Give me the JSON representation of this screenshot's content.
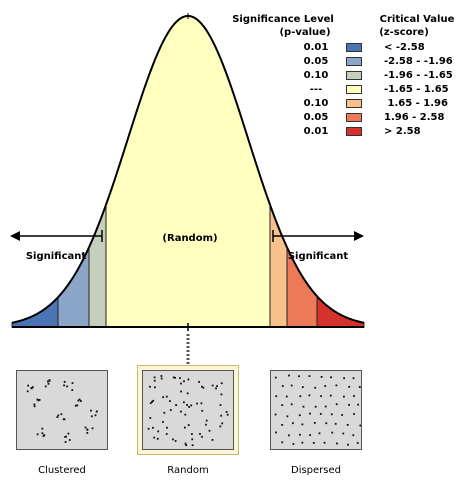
{
  "labels": {
    "significant_left": "Significant",
    "random_center": "(Random)",
    "significant_right": "Significant"
  },
  "legend": {
    "sig_header_line1": "Significance Level",
    "sig_header_line2": "(p-value)",
    "crit_header_line1": "Critical Value",
    "crit_header_line2": "(z-score)",
    "rows": [
      {
        "p": "0.01",
        "z": "< -2.58",
        "color": "#4a74b4"
      },
      {
        "p": "0.05",
        "z": "-2.58 - -1.96",
        "color": "#8aa5c8"
      },
      {
        "p": "0.10",
        "z": "-1.96 - -1.65",
        "color": "#c5cfbc"
      },
      {
        "p": "---",
        "z": "-1.65 - 1.65",
        "color": "#ffffc0"
      },
      {
        "p": "0.10",
        "z": " 1.65 - 1.96",
        "color": "#f9c28d"
      },
      {
        "p": "0.05",
        "z": "1.96 - 2.58",
        "color": "#ec7a58"
      },
      {
        "p": "0.01",
        "z": "> 2.58",
        "color": "#d4322b"
      }
    ]
  },
  "panels": {
    "clustered": "Clustered",
    "random": "Random",
    "dispersed": "Dispersed"
  },
  "colors": {
    "curve_fill": "#ffffc0",
    "left_0_01": "#4a74b4",
    "left_0_05": "#8aa5c8",
    "left_0_10": "#c5cfbc",
    "right_0_10": "#f9c28d",
    "right_0_05": "#ec7a58",
    "right_0_01": "#d4322b",
    "panel_bg": "#d9d9d9",
    "highlight": "#fbf7d6"
  }
}
